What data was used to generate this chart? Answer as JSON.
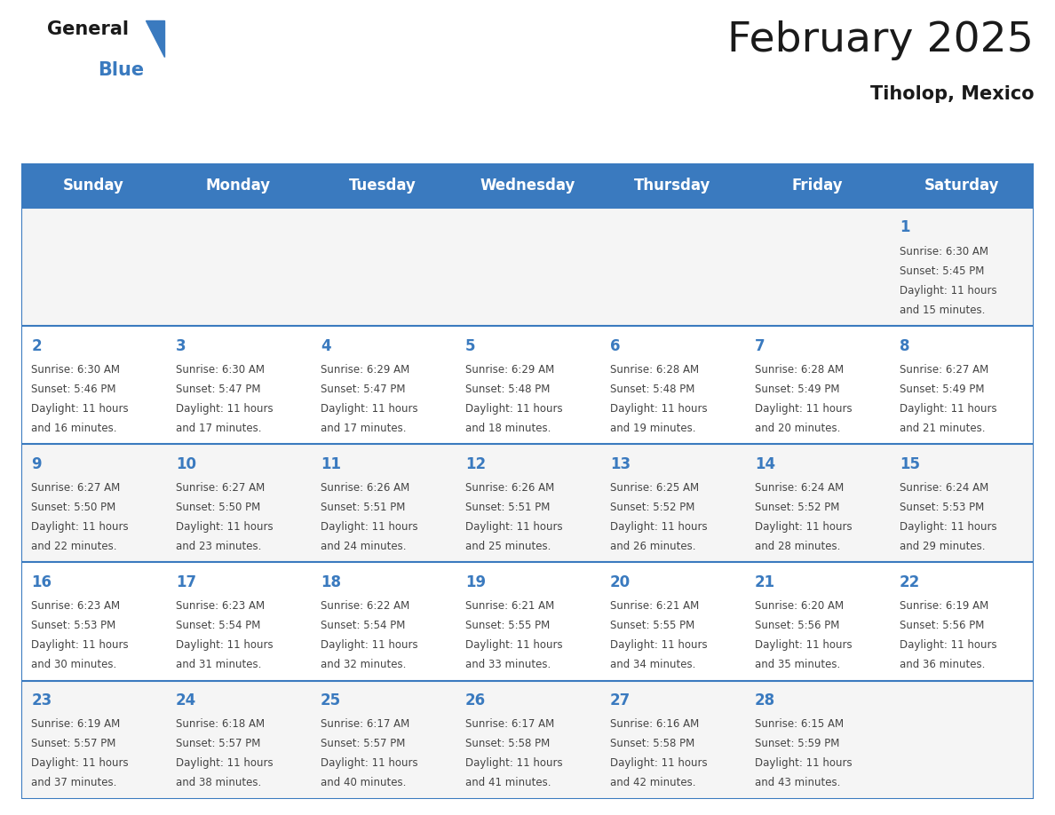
{
  "title": "February 2025",
  "subtitle": "Tiholop, Mexico",
  "header_color": "#3a7abf",
  "header_text_color": "#ffffff",
  "day_names": [
    "Sunday",
    "Monday",
    "Tuesday",
    "Wednesday",
    "Thursday",
    "Friday",
    "Saturday"
  ],
  "background_color": "#ffffff",
  "date_color": "#3a7abf",
  "text_color": "#444444",
  "line_color": "#3a7abf",
  "days": [
    {
      "day": 1,
      "col": 6,
      "row": 0,
      "sunrise": "6:30 AM",
      "sunset": "5:45 PM",
      "daylight": "11 hours and 15 minutes"
    },
    {
      "day": 2,
      "col": 0,
      "row": 1,
      "sunrise": "6:30 AM",
      "sunset": "5:46 PM",
      "daylight": "11 hours and 16 minutes"
    },
    {
      "day": 3,
      "col": 1,
      "row": 1,
      "sunrise": "6:30 AM",
      "sunset": "5:47 PM",
      "daylight": "11 hours and 17 minutes"
    },
    {
      "day": 4,
      "col": 2,
      "row": 1,
      "sunrise": "6:29 AM",
      "sunset": "5:47 PM",
      "daylight": "11 hours and 17 minutes"
    },
    {
      "day": 5,
      "col": 3,
      "row": 1,
      "sunrise": "6:29 AM",
      "sunset": "5:48 PM",
      "daylight": "11 hours and 18 minutes"
    },
    {
      "day": 6,
      "col": 4,
      "row": 1,
      "sunrise": "6:28 AM",
      "sunset": "5:48 PM",
      "daylight": "11 hours and 19 minutes"
    },
    {
      "day": 7,
      "col": 5,
      "row": 1,
      "sunrise": "6:28 AM",
      "sunset": "5:49 PM",
      "daylight": "11 hours and 20 minutes"
    },
    {
      "day": 8,
      "col": 6,
      "row": 1,
      "sunrise": "6:27 AM",
      "sunset": "5:49 PM",
      "daylight": "11 hours and 21 minutes"
    },
    {
      "day": 9,
      "col": 0,
      "row": 2,
      "sunrise": "6:27 AM",
      "sunset": "5:50 PM",
      "daylight": "11 hours and 22 minutes"
    },
    {
      "day": 10,
      "col": 1,
      "row": 2,
      "sunrise": "6:27 AM",
      "sunset": "5:50 PM",
      "daylight": "11 hours and 23 minutes"
    },
    {
      "day": 11,
      "col": 2,
      "row": 2,
      "sunrise": "6:26 AM",
      "sunset": "5:51 PM",
      "daylight": "11 hours and 24 minutes"
    },
    {
      "day": 12,
      "col": 3,
      "row": 2,
      "sunrise": "6:26 AM",
      "sunset": "5:51 PM",
      "daylight": "11 hours and 25 minutes"
    },
    {
      "day": 13,
      "col": 4,
      "row": 2,
      "sunrise": "6:25 AM",
      "sunset": "5:52 PM",
      "daylight": "11 hours and 26 minutes"
    },
    {
      "day": 14,
      "col": 5,
      "row": 2,
      "sunrise": "6:24 AM",
      "sunset": "5:52 PM",
      "daylight": "11 hours and 28 minutes"
    },
    {
      "day": 15,
      "col": 6,
      "row": 2,
      "sunrise": "6:24 AM",
      "sunset": "5:53 PM",
      "daylight": "11 hours and 29 minutes"
    },
    {
      "day": 16,
      "col": 0,
      "row": 3,
      "sunrise": "6:23 AM",
      "sunset": "5:53 PM",
      "daylight": "11 hours and 30 minutes"
    },
    {
      "day": 17,
      "col": 1,
      "row": 3,
      "sunrise": "6:23 AM",
      "sunset": "5:54 PM",
      "daylight": "11 hours and 31 minutes"
    },
    {
      "day": 18,
      "col": 2,
      "row": 3,
      "sunrise": "6:22 AM",
      "sunset": "5:54 PM",
      "daylight": "11 hours and 32 minutes"
    },
    {
      "day": 19,
      "col": 3,
      "row": 3,
      "sunrise": "6:21 AM",
      "sunset": "5:55 PM",
      "daylight": "11 hours and 33 minutes"
    },
    {
      "day": 20,
      "col": 4,
      "row": 3,
      "sunrise": "6:21 AM",
      "sunset": "5:55 PM",
      "daylight": "11 hours and 34 minutes"
    },
    {
      "day": 21,
      "col": 5,
      "row": 3,
      "sunrise": "6:20 AM",
      "sunset": "5:56 PM",
      "daylight": "11 hours and 35 minutes"
    },
    {
      "day": 22,
      "col": 6,
      "row": 3,
      "sunrise": "6:19 AM",
      "sunset": "5:56 PM",
      "daylight": "11 hours and 36 minutes"
    },
    {
      "day": 23,
      "col": 0,
      "row": 4,
      "sunrise": "6:19 AM",
      "sunset": "5:57 PM",
      "daylight": "11 hours and 37 minutes"
    },
    {
      "day": 24,
      "col": 1,
      "row": 4,
      "sunrise": "6:18 AM",
      "sunset": "5:57 PM",
      "daylight": "11 hours and 38 minutes"
    },
    {
      "day": 25,
      "col": 2,
      "row": 4,
      "sunrise": "6:17 AM",
      "sunset": "5:57 PM",
      "daylight": "11 hours and 40 minutes"
    },
    {
      "day": 26,
      "col": 3,
      "row": 4,
      "sunrise": "6:17 AM",
      "sunset": "5:58 PM",
      "daylight": "11 hours and 41 minutes"
    },
    {
      "day": 27,
      "col": 4,
      "row": 4,
      "sunrise": "6:16 AM",
      "sunset": "5:58 PM",
      "daylight": "11 hours and 42 minutes"
    },
    {
      "day": 28,
      "col": 5,
      "row": 4,
      "sunrise": "6:15 AM",
      "sunset": "5:59 PM",
      "daylight": "11 hours and 43 minutes"
    }
  ]
}
